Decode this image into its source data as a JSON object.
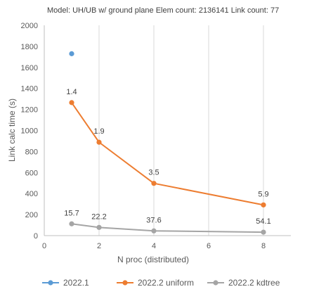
{
  "chart_data": {
    "type": "scatter",
    "title": "Model: UH/UB w/ ground plane Elem count: 2136141 Link count: 77",
    "xlabel": "N proc (distributed)",
    "ylabel": "Link calc time (s)",
    "xlim": [
      0,
      9
    ],
    "ylim": [
      0,
      2000
    ],
    "xticks": [
      0,
      2,
      4,
      6,
      8
    ],
    "yticks": [
      0,
      200,
      400,
      600,
      800,
      1000,
      1200,
      1400,
      1600,
      1800,
      2000
    ],
    "grid": {
      "x": true,
      "y": false
    },
    "legend": "bottom",
    "series": [
      {
        "name": "2022.1",
        "color": "#5b9bd5",
        "lines": false,
        "points": [
          {
            "x": 1,
            "y": 1730,
            "label": ""
          }
        ]
      },
      {
        "name": "2022.2 uniform",
        "color": "#ed7d31",
        "lines": true,
        "points": [
          {
            "x": 1,
            "y": 1265,
            "label": "1.4"
          },
          {
            "x": 2,
            "y": 888,
            "label": "1.9"
          },
          {
            "x": 4,
            "y": 497,
            "label": "3.5"
          },
          {
            "x": 8,
            "y": 292,
            "label": "5.9"
          }
        ]
      },
      {
        "name": "2022.2 kdtree",
        "color": "#a5a5a5",
        "lines": true,
        "points": [
          {
            "x": 1,
            "y": 112,
            "label": "15.7"
          },
          {
            "x": 2,
            "y": 78,
            "label": "22.2"
          },
          {
            "x": 4,
            "y": 45,
            "label": "37.6"
          },
          {
            "x": 8,
            "y": 33,
            "label": "54.1"
          }
        ]
      }
    ]
  }
}
